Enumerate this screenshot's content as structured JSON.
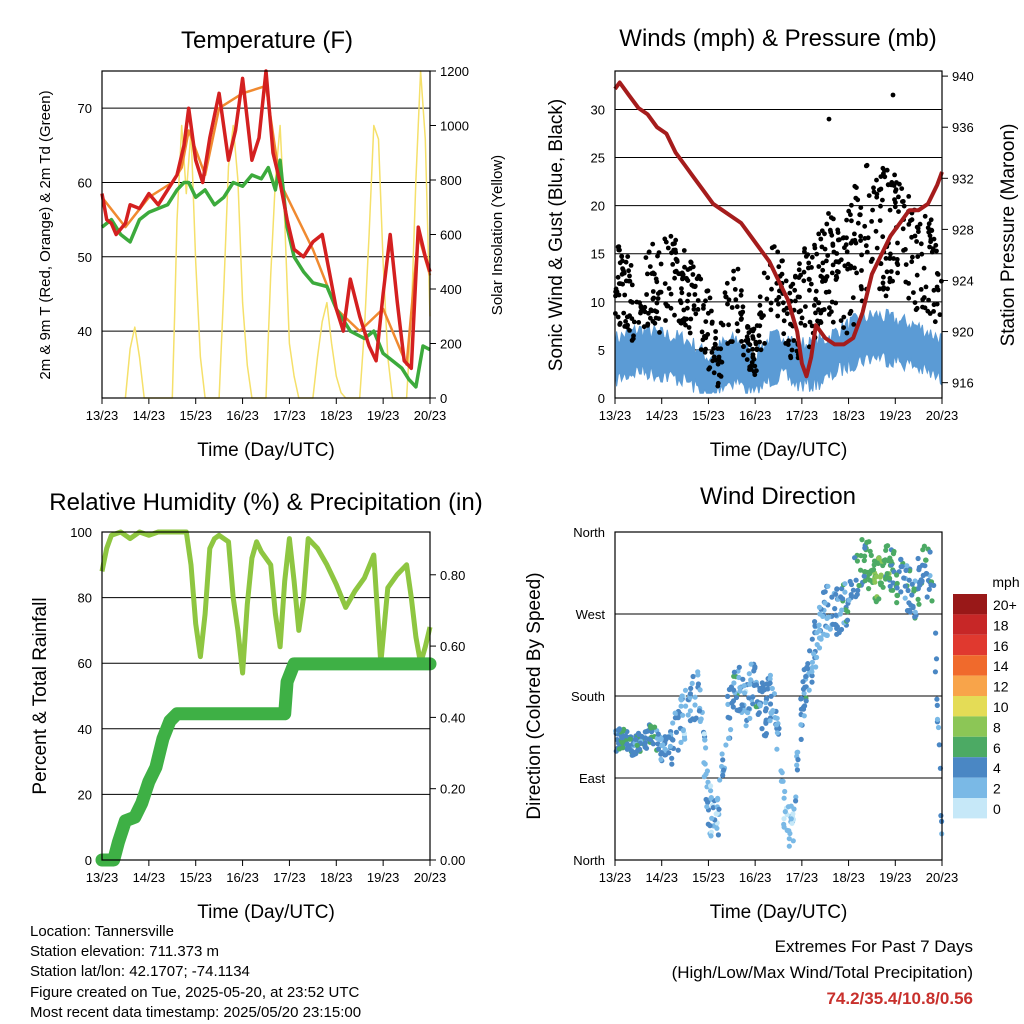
{
  "colors": {
    "temp2m": "#d42020",
    "temp9m": "#f08a30",
    "dewpoint": "#3caa3c",
    "solar": "#f5e06a",
    "gust": "#000000",
    "wind": "#5b9bd5",
    "pressure": "#a51c1c",
    "rh": "#8ec641",
    "precip": "#3eb045",
    "grid": "#000000"
  },
  "speed_scale": {
    "title": "mph",
    "labels": [
      "20+",
      "18",
      "16",
      "14",
      "12",
      "10",
      "8",
      "6",
      "4",
      "2",
      "0"
    ],
    "colors": [
      "#991818",
      "#c72727",
      "#e0392f",
      "#f06a2c",
      "#f8a44a",
      "#e4dc56",
      "#8cc656",
      "#4caa64",
      "#4a87c4",
      "#7ab9e6",
      "#c6e8f8"
    ]
  },
  "chart_data": [
    {
      "type": "line",
      "title": "Temperature (F)",
      "xlabel": "Time (Day/UTC)",
      "ylabel": "2m & 9m T (Red, Orange) & 2m Td (Green)",
      "y2label": "Solar Insolation (Yellow)",
      "x_ticks": [
        "13/23",
        "14/23",
        "15/23",
        "16/23",
        "17/23",
        "18/23",
        "19/23",
        "20/23"
      ],
      "x_range": [
        0,
        7
      ],
      "y_ticks": [
        "40",
        "50",
        "60",
        "70"
      ],
      "ylim": [
        31,
        75
      ],
      "y2_ticks": [
        "0",
        "200",
        "400",
        "600",
        "800",
        "1000",
        "1200"
      ],
      "y2lim": [
        0,
        1200
      ],
      "grid": true,
      "series": [
        {
          "name": "2m T",
          "axis": "left",
          "x": [
            0,
            0.1,
            0.2,
            0.3,
            0.5,
            0.6,
            0.8,
            1.0,
            1.2,
            1.4,
            1.6,
            1.75,
            1.85,
            2.0,
            2.15,
            2.3,
            2.5,
            2.7,
            2.85,
            3.0,
            3.2,
            3.35,
            3.5,
            3.65,
            3.8,
            3.95,
            4.1,
            4.3,
            4.5,
            4.7,
            4.85,
            5.0,
            5.15,
            5.3,
            5.5,
            5.7,
            5.85,
            6.0,
            6.15,
            6.3,
            6.45,
            6.6,
            6.75,
            6.9,
            7.0
          ],
          "y": [
            58.5,
            55,
            54.5,
            53,
            54.5,
            57,
            56.5,
            58.5,
            57,
            59,
            61,
            65,
            70,
            63,
            60,
            66,
            72,
            63,
            67,
            74,
            63,
            66,
            75,
            64,
            60,
            55,
            51,
            50,
            52,
            53,
            48,
            43,
            40,
            47,
            42,
            38,
            36,
            45,
            53,
            44,
            36,
            35,
            54,
            50,
            48
          ]
        },
        {
          "name": "9m T",
          "axis": "left",
          "x": [
            0,
            0.5,
            1.0,
            1.5,
            1.7,
            1.85,
            2.2,
            2.5,
            3.0,
            3.5,
            3.8,
            4.5,
            5.0,
            5.5,
            6.0,
            6.5,
            6.75,
            7.0
          ],
          "y": [
            58,
            54,
            58,
            60,
            62,
            67,
            61,
            70,
            72,
            73,
            60,
            51,
            43,
            40,
            43,
            35.5,
            53,
            47.5
          ]
        },
        {
          "name": "2m Td",
          "axis": "left",
          "x": [
            0,
            0.2,
            0.4,
            0.6,
            0.8,
            1.0,
            1.2,
            1.4,
            1.6,
            1.75,
            1.85,
            2.0,
            2.2,
            2.4,
            2.6,
            2.8,
            3.0,
            3.2,
            3.4,
            3.55,
            3.7,
            3.8,
            3.95,
            4.1,
            4.3,
            4.5,
            4.8,
            5.0,
            5.3,
            5.6,
            5.8,
            6.0,
            6.2,
            6.4,
            6.55,
            6.7,
            6.85,
            7.0
          ],
          "y": [
            54,
            55,
            53,
            52,
            55,
            56,
            56.5,
            57,
            59,
            60,
            60,
            58,
            59,
            57,
            58,
            60,
            59.5,
            61,
            60.5,
            62,
            59,
            63,
            54,
            50,
            48,
            46.5,
            46,
            43,
            40,
            39,
            40,
            37,
            36,
            35,
            33.5,
            32.5,
            38,
            37.5
          ]
        },
        {
          "name": "Solar",
          "axis": "right",
          "x": [
            0.5,
            0.6,
            0.7,
            0.8,
            0.9,
            1.5,
            1.55,
            1.6,
            1.7,
            1.8,
            1.9,
            2.0,
            2.1,
            2.2,
            2.5,
            2.6,
            2.7,
            2.8,
            2.9,
            3.0,
            3.1,
            3.2,
            3.5,
            3.6,
            3.7,
            3.8,
            3.9,
            4.0,
            4.1,
            4.2,
            4.5,
            4.6,
            4.7,
            4.8,
            4.9,
            5.0,
            5.1,
            5.2,
            5.5,
            5.6,
            5.7,
            5.8,
            5.9,
            6.0,
            6.1,
            6.2,
            6.5,
            6.6,
            6.7,
            6.8,
            6.9,
            7.0
          ],
          "y": [
            0,
            180,
            260,
            150,
            0,
            0,
            300,
            650,
            1000,
            750,
            980,
            500,
            150,
            0,
            0,
            400,
            850,
            1000,
            800,
            350,
            120,
            0,
            0,
            450,
            800,
            1000,
            650,
            200,
            80,
            0,
            0,
            150,
            280,
            350,
            200,
            80,
            20,
            0,
            0,
            250,
            600,
            1000,
            950,
            500,
            150,
            0,
            0,
            300,
            800,
            1200,
            950,
            300
          ]
        }
      ]
    },
    {
      "type": "scatter",
      "title": "Winds (mph) & Pressure (mb)",
      "xlabel": "Time (Day/UTC)",
      "ylabel": "Sonic Wind & Gust (Blue, Black)",
      "y2label": "Station Pressure (Maroon)",
      "x_ticks": [
        "13/23",
        "14/23",
        "15/23",
        "16/23",
        "17/23",
        "18/23",
        "19/23",
        "20/23"
      ],
      "x_range": [
        0,
        7
      ],
      "y_ticks": [
        "0",
        "5",
        "10",
        "15",
        "20",
        "25",
        "30"
      ],
      "ylim": [
        0,
        34
      ],
      "y2_ticks": [
        "916",
        "920",
        "924",
        "928",
        "932",
        "936",
        "940"
      ],
      "y2lim": [
        914.8,
        940.4
      ],
      "grid": true,
      "series": [
        {
          "name": "Gust",
          "axis": "left",
          "x": [
            0,
            0.2,
            0.4,
            0.6,
            0.8,
            1.0,
            1.2,
            1.4,
            1.6,
            1.8,
            2.0,
            2.2,
            2.4,
            2.6,
            2.8,
            3.0,
            3.2,
            3.4,
            3.6,
            3.8,
            4.0,
            4.2,
            4.4,
            4.6,
            4.8,
            5.0,
            5.2,
            5.4,
            5.6,
            5.8,
            6.0,
            6.2,
            6.4,
            6.6,
            6.8,
            7.0
          ],
          "y": [
            12,
            11,
            10,
            11,
            12,
            11,
            13,
            12,
            11,
            9,
            7,
            4,
            8,
            11,
            6,
            5,
            9,
            12,
            10,
            8,
            10,
            11,
            13,
            14,
            12,
            13,
            16,
            18,
            19,
            17,
            18,
            16,
            15,
            14,
            13,
            11
          ],
          "spread": [
            3,
            3,
            3,
            3,
            3,
            4,
            3,
            3,
            3,
            3,
            3,
            2,
            3,
            3,
            2,
            2,
            3,
            3,
            3,
            3,
            4,
            4,
            4,
            4,
            4,
            5,
            5,
            5,
            5,
            5,
            4,
            4,
            4,
            4,
            4,
            3
          ]
        },
        {
          "name": "Wind",
          "axis": "left",
          "x": [
            0,
            0.5,
            1.0,
            1.5,
            1.8,
            2.0,
            2.3,
            2.6,
            2.8,
            3.0,
            3.3,
            3.6,
            3.9,
            4.2,
            4.5,
            4.8,
            5.2,
            5.6,
            6.0,
            6.4,
            6.8,
            7.0
          ],
          "y": [
            4,
            5,
            4.5,
            4,
            3,
            2,
            3.5,
            4,
            3,
            2.5,
            4,
            4.5,
            3.5,
            3.5,
            4,
            5,
            6,
            6.5,
            6,
            5.5,
            4.5,
            4
          ]
        },
        {
          "name": "Pressure",
          "axis": "right",
          "x": [
            0,
            0.1,
            0.3,
            0.5,
            0.7,
            0.9,
            1.1,
            1.3,
            1.5,
            1.7,
            1.9,
            2.1,
            2.3,
            2.5,
            2.7,
            2.9,
            3.1,
            3.3,
            3.5,
            3.7,
            3.9,
            4.0,
            4.1,
            4.2,
            4.3,
            4.5,
            4.7,
            4.9,
            5.1,
            5.3,
            5.5,
            5.7,
            5.9,
            6.1,
            6.3,
            6.5,
            6.7,
            6.9,
            7.0
          ],
          "y": [
            939,
            939.5,
            938.5,
            937.5,
            937,
            936,
            935.5,
            934,
            933,
            932,
            931,
            930,
            929.5,
            929,
            928.5,
            927.5,
            926.5,
            925.5,
            924,
            922.5,
            920,
            917.5,
            916.5,
            918,
            920.5,
            919.5,
            919,
            919,
            919.5,
            921.5,
            924.5,
            926,
            927.5,
            928.5,
            929.5,
            929.5,
            930,
            931.5,
            932.5
          ]
        }
      ]
    },
    {
      "type": "line",
      "title": "Relative Humidity (%) & Precipitation (in)",
      "xlabel": "Time (Day/UTC)",
      "ylabel": "Percent & Total Rainfall",
      "x_ticks": [
        "13/23",
        "14/23",
        "15/23",
        "16/23",
        "17/23",
        "18/23",
        "19/23",
        "20/23"
      ],
      "x_range": [
        0,
        7
      ],
      "y_ticks": [
        "0",
        "20",
        "40",
        "60",
        "80",
        "100"
      ],
      "ylim": [
        0,
        100
      ],
      "y2_ticks": [
        "0.00",
        "0.20",
        "0.40",
        "0.60",
        "0.80"
      ],
      "y2lim": [
        0,
        0.92
      ],
      "grid": true,
      "series": [
        {
          "name": "RH",
          "axis": "left",
          "x": [
            0,
            0.1,
            0.2,
            0.4,
            0.6,
            0.8,
            1.0,
            1.2,
            1.4,
            1.6,
            1.8,
            1.9,
            2.0,
            2.1,
            2.2,
            2.3,
            2.4,
            2.5,
            2.7,
            2.8,
            2.9,
            3.0,
            3.1,
            3.2,
            3.3,
            3.4,
            3.6,
            3.7,
            3.8,
            3.9,
            4.0,
            4.1,
            4.2,
            4.3,
            4.4,
            4.6,
            4.8,
            5.0,
            5.2,
            5.4,
            5.6,
            5.8,
            5.95,
            6.1,
            6.3,
            6.5,
            6.6,
            6.7,
            6.8,
            6.9,
            7.0
          ],
          "y": [
            88,
            95,
            99,
            100,
            98,
            100,
            99,
            100,
            100,
            100,
            100,
            90,
            72,
            62,
            75,
            95,
            98,
            99,
            97,
            80,
            70,
            57,
            78,
            92,
            97,
            94,
            90,
            75,
            65,
            85,
            98,
            85,
            70,
            80,
            98,
            95,
            90,
            84,
            77,
            82,
            86,
            93,
            60,
            83,
            87,
            90,
            80,
            68,
            60,
            65,
            71
          ]
        },
        {
          "name": "Precip",
          "axis": "right",
          "x": [
            0,
            0.25,
            0.35,
            0.5,
            0.7,
            0.85,
            1.0,
            1.15,
            1.3,
            1.45,
            1.6,
            1.75,
            2.0,
            2.5,
            3.0,
            3.5,
            3.9,
            3.95,
            4.1,
            4.5,
            5.0,
            6.0,
            7.0
          ],
          "y": [
            0,
            0,
            0.05,
            0.11,
            0.12,
            0.16,
            0.22,
            0.26,
            0.34,
            0.39,
            0.41,
            0.41,
            0.41,
            0.41,
            0.41,
            0.41,
            0.41,
            0.5,
            0.55,
            0.55,
            0.55,
            0.55,
            0.55
          ]
        }
      ]
    },
    {
      "type": "scatter",
      "title": "Wind Direction",
      "xlabel": "Time (Day/UTC)",
      "ylabel": "Direction (Colored By Speed)",
      "x_ticks": [
        "13/23",
        "14/23",
        "15/23",
        "16/23",
        "17/23",
        "18/23",
        "19/23",
        "20/23"
      ],
      "x_range": [
        0,
        7
      ],
      "y_ticks": [
        "North",
        "East",
        "South",
        "West",
        "North"
      ],
      "ylim": [
        0,
        360
      ],
      "grid": true,
      "x": [
        0,
        0.2,
        0.4,
        0.6,
        0.8,
        1.0,
        1.2,
        1.4,
        1.6,
        1.8,
        2.0,
        2.2,
        2.4,
        2.6,
        2.8,
        3.0,
        3.2,
        3.4,
        3.6,
        3.8,
        4.0,
        4.2,
        4.4,
        4.6,
        4.8,
        5.0,
        5.2,
        5.4,
        5.6,
        5.8,
        6.0,
        6.2,
        6.4,
        6.6,
        6.8,
        7.0
      ],
      "y": [
        130,
        135,
        125,
        130,
        140,
        120,
        130,
        150,
        170,
        190,
        60,
        40,
        150,
        190,
        170,
        200,
        160,
        190,
        60,
        30,
        170,
        220,
        260,
        280,
        270,
        290,
        320,
        330,
        300,
        320,
        310,
        300,
        290,
        320,
        310,
        30
      ],
      "speeds": [
        4,
        5,
        4,
        4,
        5,
        3,
        4,
        2,
        2,
        3,
        2,
        2,
        3,
        4,
        2,
        4,
        3,
        3,
        2,
        1,
        4,
        3,
        2,
        3,
        4,
        4,
        5,
        6,
        7,
        6,
        5,
        4,
        4,
        5,
        4,
        3
      ]
    }
  ],
  "info": {
    "location": "Location: Tannersville",
    "elevation": "Station elevation: 711.373 m",
    "latlon": "Station lat/lon: 42.1707; -74.1134",
    "created": "Figure created on Tue, 2025-05-20, at 23:52 UTC",
    "latest": "Most recent data timestamp: 2025/05/20 23:15:00"
  },
  "extremes": {
    "title": "Extremes For Past 7 Days",
    "subtitle": "(High/Low/Max Wind/Total Precipitation)",
    "values": "74.2/35.4/10.8/0.56"
  }
}
